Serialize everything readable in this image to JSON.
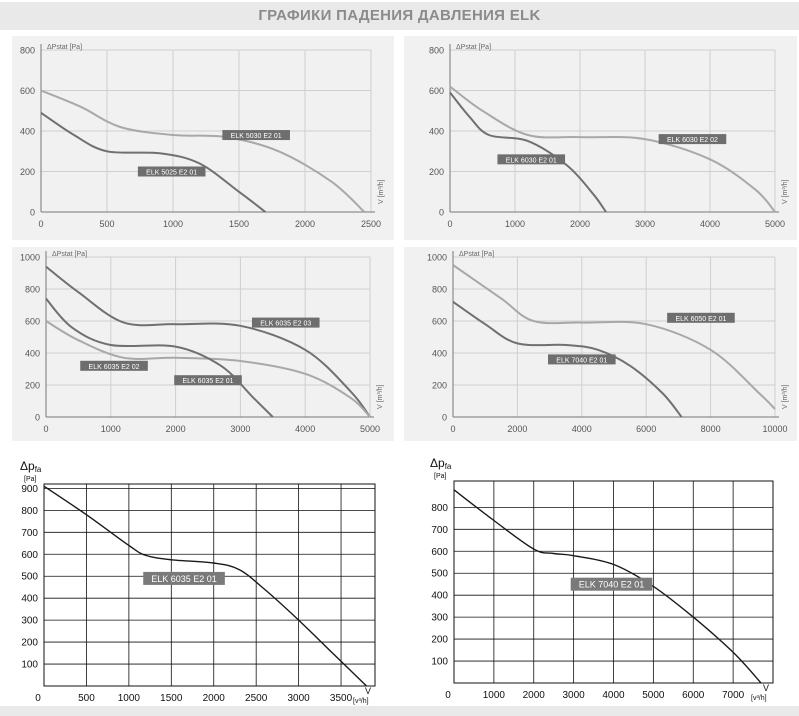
{
  "page": {
    "title": "ГРАФИКИ ПАДЕНИЯ ДАВЛЕНИЯ ELK"
  },
  "chart_data": [
    {
      "id": "c1",
      "type": "line",
      "style": "gray",
      "ylabel": "ΔPstat [Pa]",
      "xlabel": "V [m³/h]",
      "xlim": [
        0,
        2500
      ],
      "ylim": [
        0,
        800
      ],
      "xticks": [
        0,
        500,
        1000,
        1500,
        2000,
        2500
      ],
      "yticks": [
        0,
        200,
        400,
        600,
        800
      ],
      "series": [
        {
          "name": "ELK 5030 E2 01",
          "color": "#a8a8a8",
          "label_at": [
            1630,
            380
          ],
          "x": [
            0,
            300,
            600,
            1000,
            1400,
            1800,
            2200,
            2450
          ],
          "y": [
            600,
            520,
            420,
            380,
            370,
            300,
            150,
            0
          ]
        },
        {
          "name": "ELK 5025 E2 01",
          "color": "#707070",
          "label_at": [
            990,
            200
          ],
          "x": [
            0,
            250,
            500,
            900,
            1200,
            1500,
            1700
          ],
          "y": [
            490,
            380,
            300,
            290,
            240,
            100,
            0
          ]
        }
      ]
    },
    {
      "id": "c2",
      "type": "line",
      "style": "gray",
      "ylabel": "ΔPstat [Pa]",
      "xlabel": "V [m³/h]",
      "xlim": [
        0,
        5000
      ],
      "ylim": [
        0,
        800
      ],
      "xticks": [
        0,
        1000,
        2000,
        3000,
        4000,
        5000
      ],
      "yticks": [
        0,
        200,
        400,
        600,
        800
      ],
      "series": [
        {
          "name": "ELK 6030 E2 02",
          "color": "#a8a8a8",
          "label_at": [
            3730,
            360
          ],
          "x": [
            0,
            500,
            1200,
            2000,
            3000,
            4000,
            4700,
            5000
          ],
          "y": [
            620,
            500,
            380,
            370,
            360,
            260,
            110,
            0
          ]
        },
        {
          "name": "ELK 6030 E2 01",
          "color": "#707070",
          "label_at": [
            1250,
            260
          ],
          "x": [
            0,
            300,
            600,
            1200,
            1800,
            2200,
            2400
          ],
          "y": [
            590,
            470,
            380,
            350,
            230,
            90,
            0
          ]
        }
      ]
    },
    {
      "id": "c3",
      "type": "line",
      "style": "gray",
      "ylabel": "ΔPstat [Pa]",
      "xlabel": "V [m³/h]",
      "xlim": [
        0,
        5000
      ],
      "ylim": [
        0,
        1000
      ],
      "xticks": [
        0,
        1000,
        2000,
        3000,
        4000,
        5000
      ],
      "yticks": [
        0,
        200,
        400,
        600,
        800,
        1000
      ],
      "series": [
        {
          "name": "ELK 6035 E2 03",
          "color": "#707070",
          "label_at": [
            3700,
            590
          ],
          "x": [
            0,
            500,
            1200,
            2000,
            3000,
            4000,
            4700,
            5000
          ],
          "y": [
            940,
            780,
            590,
            580,
            570,
            420,
            160,
            0
          ]
        },
        {
          "name": "ELK 6035 E2 02",
          "color": "#a8a8a8",
          "label_at": [
            1050,
            320
          ],
          "x": [
            0,
            500,
            1200,
            2000,
            3000,
            4000,
            4700,
            5000
          ],
          "y": [
            600,
            480,
            370,
            370,
            350,
            270,
            120,
            0
          ]
        },
        {
          "name": "ELK 6035 E2 01",
          "color": "#707070",
          "label_at": [
            2500,
            230
          ],
          "x": [
            0,
            400,
            1000,
            2000,
            2700,
            3200,
            3500
          ],
          "y": [
            740,
            560,
            450,
            440,
            320,
            120,
            0
          ]
        }
      ]
    },
    {
      "id": "c4",
      "type": "line",
      "style": "gray",
      "ylabel": "ΔPstat [Pa]",
      "xlabel": "V [m³/h]",
      "xlim": [
        0,
        10000
      ],
      "ylim": [
        0,
        1000
      ],
      "xticks": [
        0,
        2000,
        4000,
        6000,
        8000,
        10000
      ],
      "yticks": [
        0,
        200,
        400,
        600,
        800,
        1000
      ],
      "series": [
        {
          "name": "ELK 6050 E2 01",
          "color": "#a8a8a8",
          "label_at": [
            7700,
            620
          ],
          "x": [
            0,
            1500,
            2500,
            4000,
            6000,
            8000,
            9500,
            10000
          ],
          "y": [
            950,
            740,
            600,
            590,
            580,
            420,
            150,
            50
          ]
        },
        {
          "name": "ELK 7040 E2 01",
          "color": "#707070",
          "label_at": [
            4000,
            360
          ],
          "x": [
            0,
            1000,
            2000,
            3500,
            4500,
            5500,
            6500,
            7100
          ],
          "y": [
            720,
            580,
            460,
            450,
            420,
            320,
            150,
            0
          ]
        }
      ]
    },
    {
      "id": "c5",
      "type": "line",
      "style": "bw",
      "ylabel_main": "Δp",
      "ylabel_sub": "fa",
      "yunit": "[Pa]",
      "xlabel": "V",
      "xunit": "[v³/h]",
      "xlim": [
        0,
        3900
      ],
      "ylim": [
        0,
        920
      ],
      "xticks": [
        0,
        500,
        1000,
        1500,
        2000,
        2500,
        3000,
        3500
      ],
      "yticks": [
        100,
        200,
        300,
        400,
        500,
        600,
        700,
        800,
        900
      ],
      "series": [
        {
          "name": "ELK 6035 E2 01",
          "color": "#1a1a1a",
          "label_at": [
            1650,
            490
          ],
          "x": [
            0,
            500,
            1000,
            1200,
            1500,
            2000,
            2300,
            2600,
            3000,
            3400,
            3800
          ],
          "y": [
            910,
            780,
            640,
            595,
            575,
            560,
            530,
            440,
            300,
            150,
            0
          ]
        }
      ]
    },
    {
      "id": "c6",
      "type": "line",
      "style": "bw",
      "ylabel_main": "Δp",
      "ylabel_sub": "fa",
      "yunit": "[Pa]",
      "xlabel": "V",
      "xunit": "[v³/h]",
      "xlim": [
        0,
        8000
      ],
      "ylim": [
        0,
        920
      ],
      "xticks": [
        0,
        1000,
        2000,
        3000,
        4000,
        5000,
        6000,
        7000
      ],
      "yticks": [
        100,
        200,
        300,
        400,
        500,
        600,
        700,
        800
      ],
      "series": [
        {
          "name": "ELK 7040 E2 01",
          "color": "#1a1a1a",
          "label_at": [
            3950,
            450
          ],
          "x": [
            0,
            1000,
            2000,
            2500,
            3000,
            4000,
            5000,
            6000,
            7000,
            7700
          ],
          "y": [
            880,
            740,
            610,
            590,
            580,
            540,
            440,
            300,
            140,
            0
          ]
        }
      ]
    }
  ]
}
